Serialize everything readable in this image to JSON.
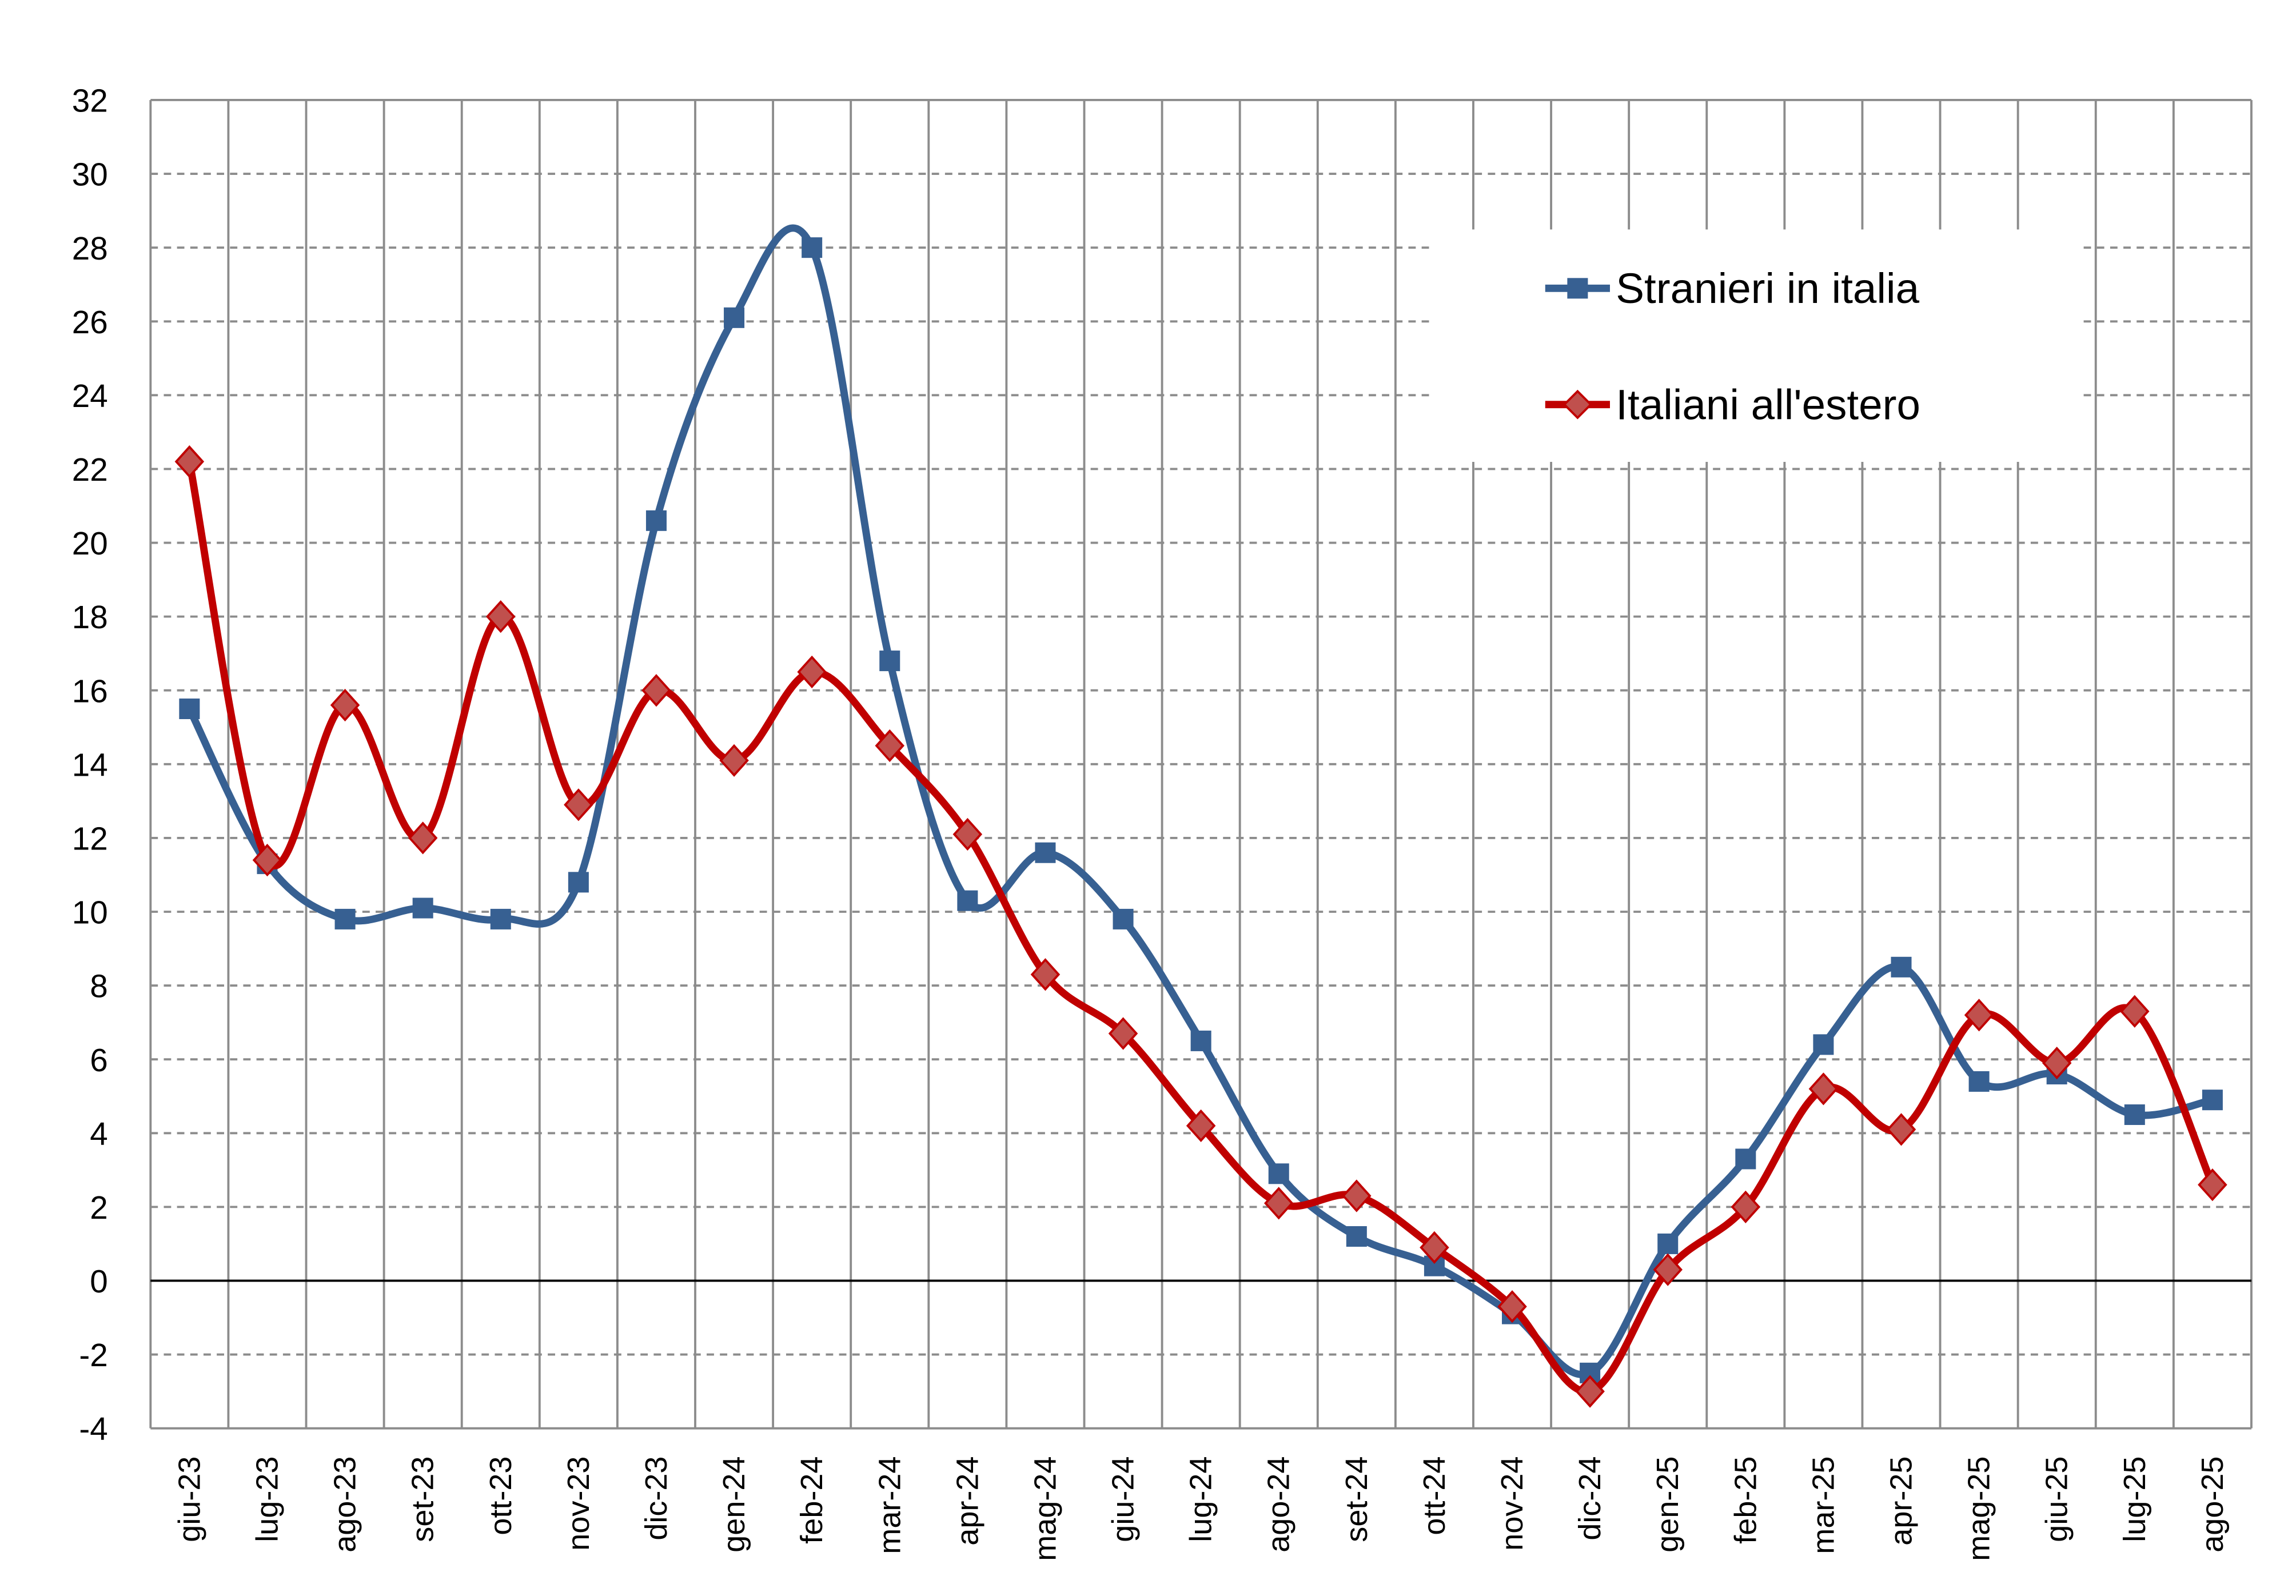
{
  "chart_data": {
    "type": "line",
    "title": "",
    "xlabel": "",
    "ylabel": "",
    "ylim": [
      -4,
      32
    ],
    "yticks": [
      "32",
      "30",
      "28",
      "26",
      "24",
      "22",
      "20",
      "18",
      "16",
      "14",
      "12",
      "10",
      "8",
      "6",
      "4",
      "2",
      "0",
      "-2",
      "-4"
    ],
    "grid": {
      "horizontal": "dashed",
      "vertical": "solid"
    },
    "smoothed": true,
    "legend_position": "top-right",
    "categories": [
      "giu-23",
      "lug-23",
      "ago-23",
      "set-23",
      "ott-23",
      "nov-23",
      "dic-23",
      "gen-24",
      "feb-24",
      "mar-24",
      "apr-24",
      "mag-24",
      "giu-24",
      "lug-24",
      "ago-24",
      "set-24",
      "ott-24",
      "nov-24",
      "dic-24",
      "gen-25",
      "feb-25",
      "mar-25",
      "apr-25",
      "mag-25",
      "giu-25",
      "lug-25",
      "ago-25"
    ],
    "series": [
      {
        "name": "Stranieri in italia",
        "color": "#376092",
        "marker": "square",
        "values": [
          15.5,
          11.3,
          9.8,
          10.1,
          9.8,
          10.8,
          20.6,
          26.1,
          28.0,
          16.8,
          10.3,
          11.6,
          9.8,
          6.5,
          2.9,
          1.2,
          0.4,
          -0.9,
          -2.5,
          1.0,
          3.3,
          6.4,
          8.5,
          5.4,
          5.6,
          4.5,
          4.9
        ]
      },
      {
        "name": "Italiani all'estero",
        "color": "#C00000",
        "marker_fill": "#C0504D",
        "marker": "diamond",
        "values": [
          22.2,
          11.4,
          15.6,
          12.0,
          18.0,
          12.9,
          16.0,
          14.1,
          16.5,
          14.5,
          12.1,
          8.3,
          6.7,
          4.2,
          2.1,
          2.3,
          0.9,
          -0.7,
          -3.0,
          0.3,
          2.0,
          5.2,
          4.1,
          7.2,
          5.9,
          7.3,
          2.6
        ]
      }
    ]
  }
}
